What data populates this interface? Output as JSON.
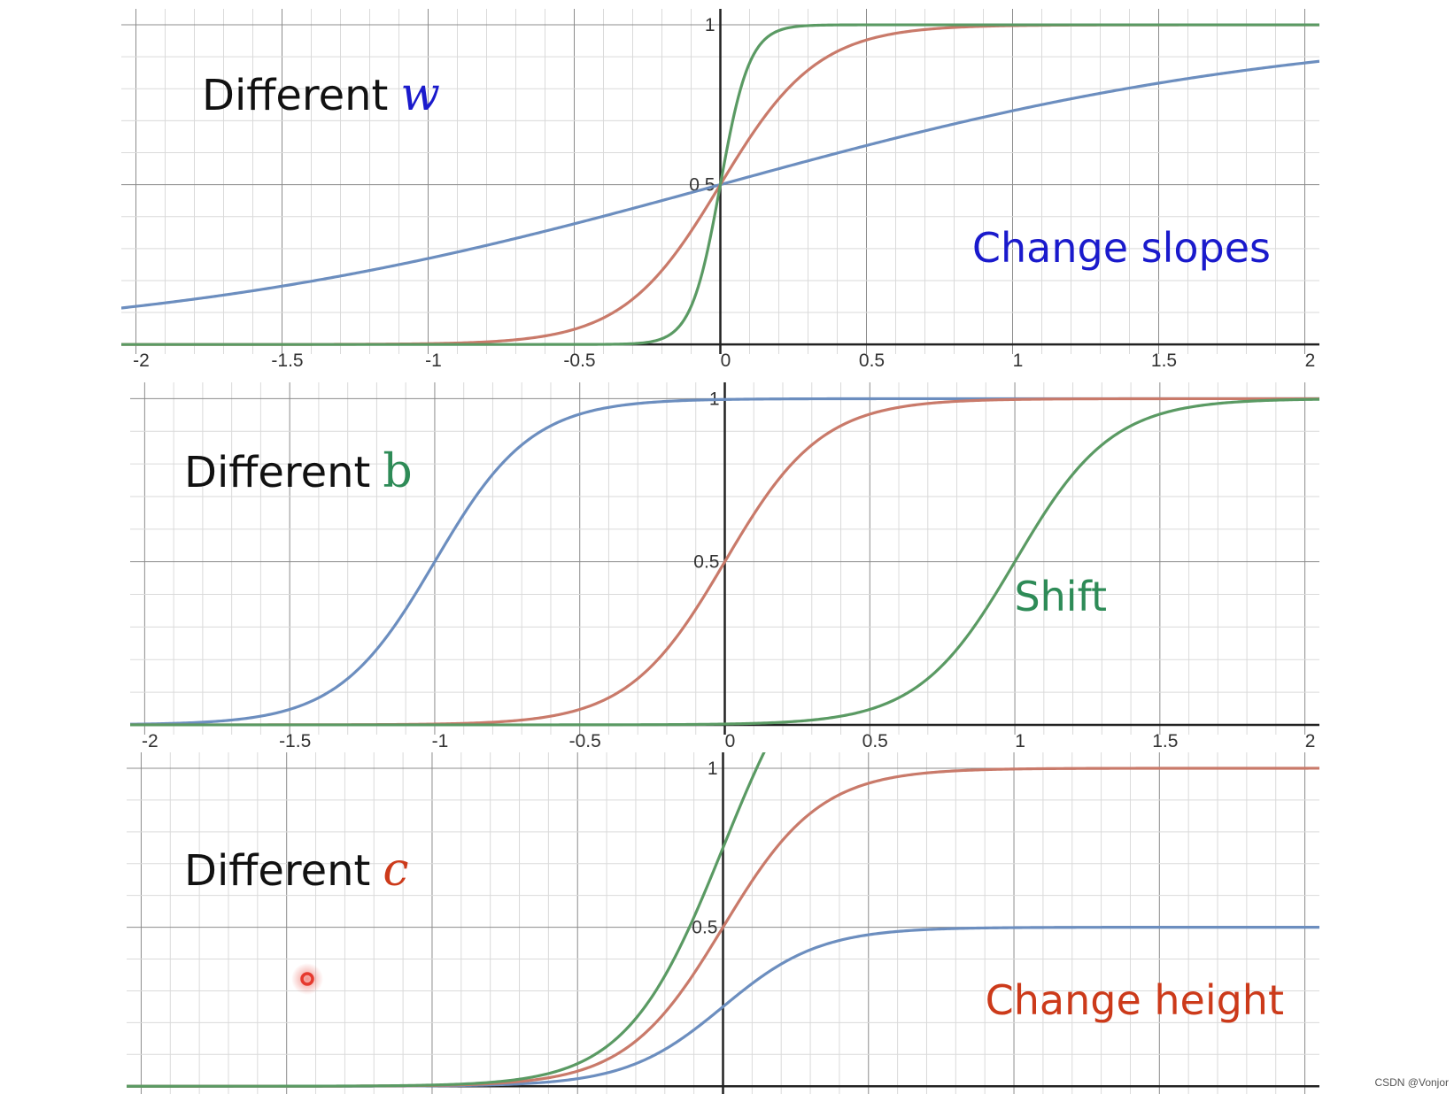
{
  "watermark": "CSDN @Vonjor",
  "colors": {
    "blue": "#6c8ebf",
    "red": "#c97a6a",
    "green": "#5a9a63",
    "label_blue": "#1a1acc",
    "label_green": "#2e8b57",
    "label_red": "#cc3a1a",
    "grid_minor": "#dadada",
    "grid_major": "#8c8c8c",
    "axis": "#222222",
    "cursor": "#e63a2e"
  },
  "chart_data": [
    {
      "type": "line",
      "function": "c * sigmoid(w*x + b)",
      "xlim": [
        -2.05,
        2.05
      ],
      "ylim": [
        -0.03,
        1.05
      ],
      "x_ticks": [
        -2,
        -1.5,
        -1,
        -0.5,
        0,
        0.5,
        1,
        1.5,
        2
      ],
      "x_tick_labels": [
        "-2",
        "-1.5",
        "-1",
        "-0.5",
        "0",
        "0.5",
        "1",
        "1.5",
        "2"
      ],
      "y_ticks": [
        0.5,
        1
      ],
      "y_tick_labels": [
        "0.5",
        "1"
      ],
      "grid": true,
      "title_text": "Different",
      "title_var": "w",
      "title_var_color": "#1a1acc",
      "note": "Change slopes",
      "note_color": "#1a1acc",
      "series": [
        {
          "color": "#6c8ebf",
          "w": 1,
          "b": 0,
          "c": 1
        },
        {
          "color": "#c97a6a",
          "w": 6,
          "b": 0,
          "c": 1
        },
        {
          "color": "#5a9a63",
          "w": 20,
          "b": 0,
          "c": 1
        }
      ]
    },
    {
      "type": "line",
      "function": "c * sigmoid(w*x + b)",
      "xlim": [
        -2.05,
        2.05
      ],
      "ylim": [
        -0.03,
        1.05
      ],
      "x_ticks": [
        -2,
        -1.5,
        -1,
        -0.5,
        0,
        0.5,
        1,
        1.5,
        2
      ],
      "x_tick_labels": [
        "-2",
        "-1.5",
        "-1",
        "-0.5",
        "0",
        "0.5",
        "1",
        "1.5",
        "2"
      ],
      "y_ticks": [
        0.5,
        1
      ],
      "y_tick_labels": [
        "0.5",
        "1"
      ],
      "grid": true,
      "title_text": "Different",
      "title_var": "b",
      "title_var_color": "#2e8b57",
      "note": "Shift",
      "note_color": "#2e8b57",
      "series": [
        {
          "color": "#6c8ebf",
          "w": 6,
          "b": 6,
          "c": 1
        },
        {
          "color": "#c97a6a",
          "w": 6,
          "b": 0,
          "c": 1
        },
        {
          "color": "#5a9a63",
          "w": 6,
          "b": -6,
          "c": 1
        }
      ]
    },
    {
      "type": "line",
      "function": "c * sigmoid(w*x + b)",
      "xlim": [
        -2.05,
        2.05
      ],
      "ylim": [
        -0.03,
        1.05
      ],
      "x_ticks": [
        -2,
        -1.5,
        -1,
        -0.5,
        0,
        0.5,
        1,
        1.5,
        2
      ],
      "x_tick_labels": [
        "-2",
        "-1.5",
        "-1",
        "-0.5",
        "0",
        "0.5",
        "1",
        "1.5",
        "2"
      ],
      "y_ticks": [
        0.5,
        1
      ],
      "y_tick_labels": [
        "0.5",
        "1"
      ],
      "grid": true,
      "title_text": "Different",
      "title_var": "c",
      "title_var_color": "#cc3a1a",
      "note": "Change height",
      "note_color": "#cc3a1a",
      "series": [
        {
          "color": "#6c8ebf",
          "w": 6,
          "b": 0,
          "c": 0.5
        },
        {
          "color": "#c97a6a",
          "w": 6,
          "b": 0,
          "c": 1
        },
        {
          "color": "#5a9a63",
          "w": 6,
          "b": 0,
          "c": 1.5
        }
      ]
    }
  ]
}
